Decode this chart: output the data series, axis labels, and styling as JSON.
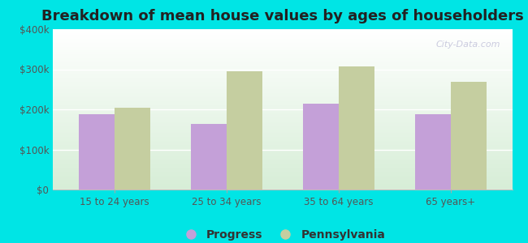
{
  "title": "Breakdown of mean house values by ages of householders",
  "categories": [
    "15 to 24 years",
    "25 to 34 years",
    "35 to 64 years",
    "65 years+"
  ],
  "progress_values": [
    188000,
    163000,
    215000,
    188000
  ],
  "pennsylvania_values": [
    205000,
    295000,
    308000,
    268000
  ],
  "progress_color": "#c4a0d8",
  "pennsylvania_color": "#c5cea0",
  "background_color": "#00e5e5",
  "ylim": [
    0,
    400000
  ],
  "yticks": [
    0,
    100000,
    200000,
    300000,
    400000
  ],
  "ytick_labels": [
    "$0",
    "$100k",
    "$200k",
    "$300k",
    "$400k"
  ],
  "bar_width": 0.32,
  "title_fontsize": 13,
  "legend_labels": [
    "Progress",
    "Pennsylvania"
  ],
  "watermark": "City-Data.com",
  "grid_color": "#e0e8d8",
  "tick_color": "#888888"
}
